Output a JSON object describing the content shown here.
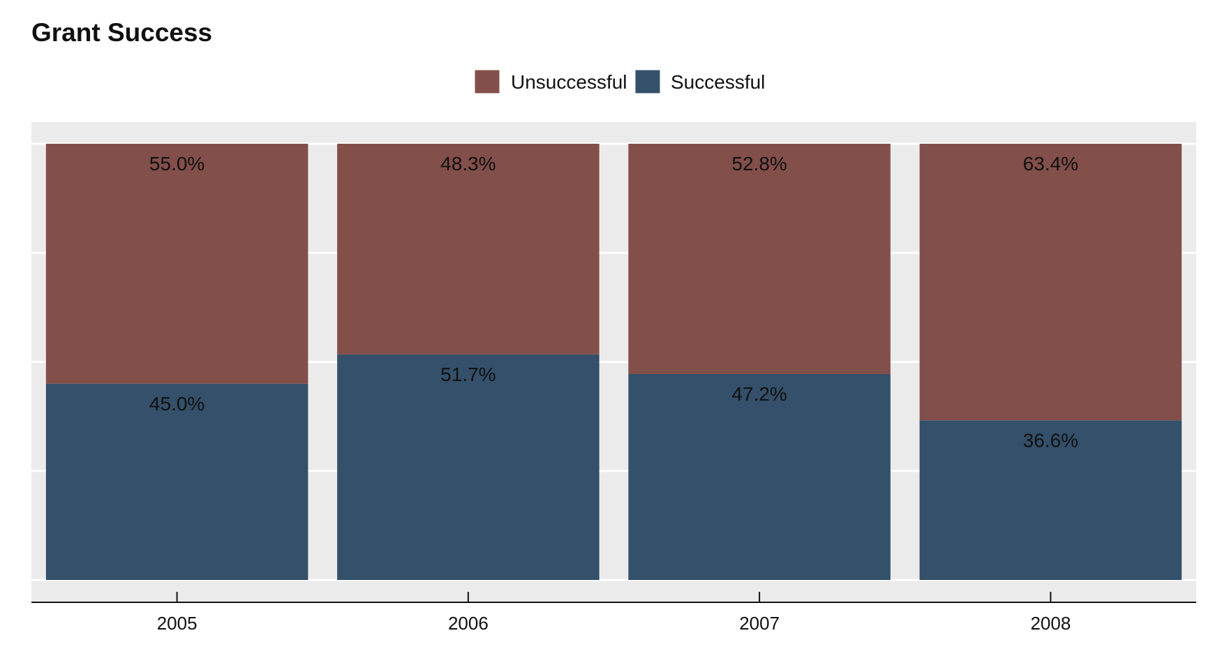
{
  "chart_data": {
    "type": "bar",
    "stacked": true,
    "title": "Grant Success",
    "categories": [
      "2005",
      "2006",
      "2007",
      "2008"
    ],
    "series": [
      {
        "name": "Successful",
        "values": [
          45.0,
          51.7,
          47.2,
          36.6
        ],
        "labels": [
          "45.0%",
          "51.7%",
          "47.2%",
          "36.6%"
        ],
        "color": "#34506a"
      },
      {
        "name": "Unsuccessful",
        "values": [
          55.0,
          48.3,
          52.8,
          63.4
        ],
        "labels": [
          "55.0%",
          "48.3%",
          "52.8%",
          "63.4%"
        ],
        "color": "#834f4a"
      }
    ],
    "legend_order": [
      "Unsuccessful",
      "Successful"
    ],
    "legend_position": "top",
    "xlabel": "",
    "ylabel": "",
    "ylim": [
      0,
      100
    ],
    "grid": true,
    "y_tick_labels_shown": false,
    "panel_color": "#ebebeb"
  }
}
